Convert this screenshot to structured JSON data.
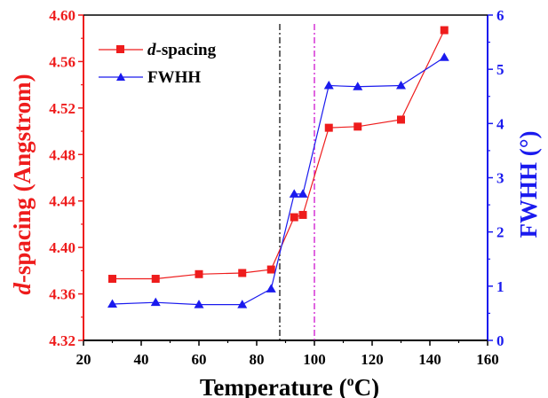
{
  "chart_data": {
    "type": "line",
    "xlabel": "Temperature (",
    "xlabel_sup": "o",
    "xlabel_tail": "C)",
    "ylabel_left_italic": "d",
    "ylabel_left_rest": "-spacing (Angstrom)",
    "ylabel_right": "FWHH (°)",
    "xlim": [
      20,
      160
    ],
    "ylim_left": [
      4.32,
      4.6
    ],
    "ylim_right": [
      0,
      6
    ],
    "x_ticks": [
      "20",
      "40",
      "60",
      "80",
      "100",
      "120",
      "140",
      "160"
    ],
    "y_left_ticks": [
      "4.32",
      "4.36",
      "4.40",
      "4.44",
      "4.48",
      "4.52",
      "4.56",
      "4.60"
    ],
    "y_right_ticks": [
      "0",
      "1",
      "2",
      "3",
      "4",
      "5",
      "6"
    ],
    "vertical_lines": [
      {
        "x": 88,
        "style": "dash-dot",
        "color": "#000000"
      },
      {
        "x": 100,
        "style": "dash-dot",
        "color": "#cc00cc"
      }
    ],
    "series": [
      {
        "name": "d-spacing",
        "name_italic": "d",
        "name_rest": "-spacing",
        "axis": "left",
        "marker": "square",
        "color": "#ee1c1c",
        "x": [
          30,
          45,
          60,
          75,
          85,
          93,
          96,
          105,
          115,
          130,
          145
        ],
        "values": [
          4.373,
          4.373,
          4.377,
          4.378,
          4.381,
          4.426,
          4.428,
          4.503,
          4.504,
          4.51,
          4.587
        ]
      },
      {
        "name": "FWHH",
        "axis": "right",
        "marker": "triangle",
        "color": "#1a1aee",
        "x": [
          30,
          45,
          60,
          75,
          85,
          93,
          96,
          105,
          115,
          130,
          145
        ],
        "values": [
          0.67,
          0.7,
          0.66,
          0.66,
          0.95,
          2.7,
          2.7,
          4.7,
          4.68,
          4.7,
          5.22
        ]
      }
    ],
    "legend_position": "top-left",
    "colors": {
      "left_axis": "#ee1c1c",
      "right_axis": "#1a1aee",
      "bottom_axis": "#000000"
    }
  }
}
